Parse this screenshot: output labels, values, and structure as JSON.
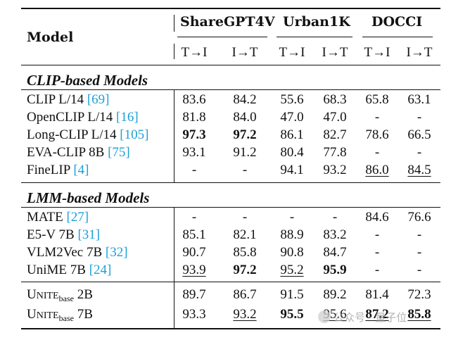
{
  "header": {
    "model_label": "Model",
    "groups": [
      "ShareGPT4V",
      "Urban1K",
      "DOCCI"
    ],
    "sub": [
      "T→I",
      "I→T",
      "T→I",
      "I→T",
      "T→I",
      "I→T"
    ]
  },
  "sections": [
    {
      "title": "CLIP-based Models",
      "rows": [
        {
          "name": "CLIP L/14 ",
          "cite": "[69]",
          "vals": [
            "83.6",
            "84.2",
            "55.6",
            "68.3",
            "65.8",
            "63.1"
          ]
        },
        {
          "name": "OpenCLIP L/14 ",
          "cite": "[16]",
          "vals": [
            "81.8",
            "84.0",
            "47.0",
            "47.0",
            "-",
            "-"
          ]
        },
        {
          "name": "Long-CLIP L/14 ",
          "cite": "[105]",
          "vals": [
            "97.3",
            "97.2",
            "86.1",
            "82.7",
            "78.6",
            "66.5"
          ]
        },
        {
          "name": "EVA-CLIP 8B ",
          "cite": "[75]",
          "vals": [
            "93.1",
            "91.2",
            "80.4",
            "77.8",
            "-",
            "-"
          ]
        },
        {
          "name": "FineLIP ",
          "cite": "[4]",
          "vals": [
            "-",
            "-",
            "94.1",
            "93.2",
            "86.0",
            "84.5"
          ]
        }
      ]
    },
    {
      "title": "LMM-based Models",
      "rows": [
        {
          "name": "MATE ",
          "cite": "[27]",
          "vals": [
            "-",
            "-",
            "-",
            "-",
            "84.6",
            "76.6"
          ]
        },
        {
          "name": "E5-V 7B ",
          "cite": "[31]",
          "vals": [
            "85.1",
            "82.1",
            "88.9",
            "83.2",
            "-",
            "-"
          ]
        },
        {
          "name": "VLM2Vec 7B ",
          "cite": "[32]",
          "vals": [
            "90.7",
            "85.8",
            "90.8",
            "84.7",
            "-",
            "-"
          ]
        },
        {
          "name": "UniME 7B ",
          "cite": "[24]",
          "vals": [
            "93.9",
            "97.2",
            "95.2",
            "95.9",
            "-",
            "-"
          ]
        }
      ]
    }
  ],
  "unite": [
    {
      "name_first": "U",
      "name_caps": "NITE",
      "name_sub": "base",
      "size": " 2B",
      "vals": [
        "89.7",
        "86.7",
        "91.5",
        "89.2",
        "81.4",
        "72.3"
      ]
    },
    {
      "name_first": "U",
      "name_caps": "NITE",
      "name_sub": "base",
      "size": " 7B",
      "vals": [
        "93.3",
        "93.2",
        "95.5",
        "95.6",
        "87.2",
        "85.8"
      ]
    }
  ],
  "watermark": {
    "text": "公众号 · 量子位"
  }
}
